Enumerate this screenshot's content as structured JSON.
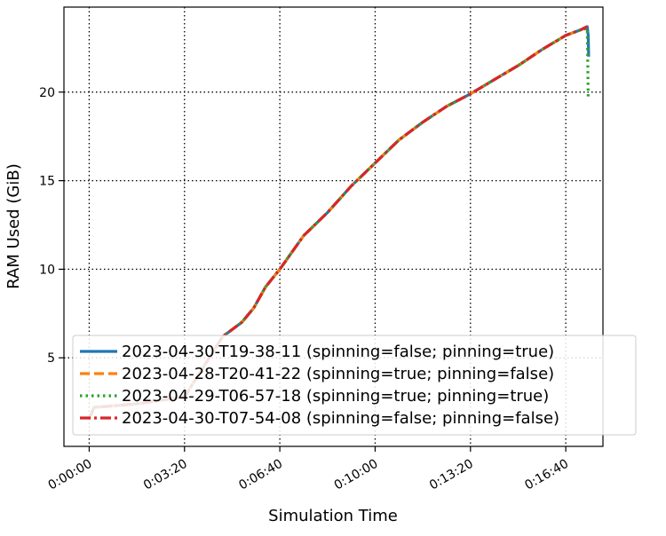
{
  "chart_data": {
    "type": "line",
    "xlabel": "Simulation Time",
    "ylabel": "RAM Used (GiB)",
    "x_unit": "h:mm:ss",
    "xlim": [
      "-0:00:53",
      "0:17:58"
    ],
    "ylim": [
      0.0,
      24.8
    ],
    "x_ticks": [
      "0:00:00",
      "0:03:20",
      "0:06:40",
      "0:10:00",
      "0:13:20",
      "0:16:40"
    ],
    "y_ticks": [
      5,
      10,
      15,
      20
    ],
    "grid": true,
    "grid_style": "dotted",
    "legend_position": "lower-right",
    "series": [
      {
        "name": "2023-04-30-T19-38-11 (spinning=false; pinning=true)",
        "color": "#1f77b4",
        "style": "solid",
        "points": [
          [
            "0:00:00",
            1.5
          ],
          [
            "0:00:10",
            2.2
          ],
          [
            "0:01:40",
            2.4
          ],
          [
            "0:03:20",
            2.8
          ],
          [
            "0:04:00",
            4.5
          ],
          [
            "0:04:40",
            6.2
          ],
          [
            "0:05:20",
            7.0
          ],
          [
            "0:05:45",
            7.8
          ],
          [
            "0:06:10",
            9.0
          ],
          [
            "0:06:40",
            10.0
          ],
          [
            "0:07:30",
            11.9
          ],
          [
            "0:08:20",
            13.2
          ],
          [
            "0:09:10",
            14.7
          ],
          [
            "0:10:00",
            16.0
          ],
          [
            "0:10:50",
            17.3
          ],
          [
            "0:11:40",
            18.3
          ],
          [
            "0:12:30",
            19.2
          ],
          [
            "0:13:20",
            19.9
          ],
          [
            "0:14:10",
            20.7
          ],
          [
            "0:15:00",
            21.5
          ],
          [
            "0:15:50",
            22.4
          ],
          [
            "0:16:40",
            23.2
          ],
          [
            "0:17:10",
            23.5
          ],
          [
            "0:17:25",
            23.7
          ],
          [
            "0:17:27",
            23.2
          ],
          [
            "0:17:28",
            22.0
          ]
        ]
      },
      {
        "name": "2023-04-28-T20-41-22 (spinning=true; pinning=false)",
        "color": "#ff7f0e",
        "style": "dashed",
        "points": [
          [
            "0:00:00",
            1.5
          ],
          [
            "0:00:10",
            2.2
          ],
          [
            "0:01:40",
            2.4
          ],
          [
            "0:03:20",
            2.8
          ],
          [
            "0:04:00",
            4.5
          ],
          [
            "0:04:40",
            6.2
          ],
          [
            "0:05:20",
            7.0
          ],
          [
            "0:05:45",
            7.8
          ],
          [
            "0:06:10",
            9.0
          ],
          [
            "0:06:40",
            10.0
          ],
          [
            "0:07:30",
            11.9
          ],
          [
            "0:08:20",
            13.2
          ],
          [
            "0:09:10",
            14.7
          ],
          [
            "0:10:00",
            16.0
          ],
          [
            "0:10:50",
            17.3
          ],
          [
            "0:11:40",
            18.3
          ],
          [
            "0:12:30",
            19.2
          ],
          [
            "0:13:20",
            19.9
          ],
          [
            "0:14:10",
            20.7
          ],
          [
            "0:15:00",
            21.5
          ],
          [
            "0:15:50",
            22.4
          ],
          [
            "0:16:40",
            23.2
          ],
          [
            "0:17:10",
            23.5
          ],
          [
            "0:17:25",
            23.7
          ]
        ]
      },
      {
        "name": "2023-04-29-T06-57-18 (spinning=true; pinning=true)",
        "color": "#2ca02c",
        "style": "dotted",
        "points": [
          [
            "0:00:00",
            1.5
          ],
          [
            "0:00:10",
            2.2
          ],
          [
            "0:01:40",
            2.4
          ],
          [
            "0:03:20",
            2.8
          ],
          [
            "0:04:00",
            4.5
          ],
          [
            "0:04:40",
            6.2
          ],
          [
            "0:05:20",
            7.0
          ],
          [
            "0:05:45",
            7.8
          ],
          [
            "0:06:10",
            9.0
          ],
          [
            "0:06:40",
            10.0
          ],
          [
            "0:07:30",
            11.9
          ],
          [
            "0:08:20",
            13.2
          ],
          [
            "0:09:10",
            14.7
          ],
          [
            "0:10:00",
            16.0
          ],
          [
            "0:10:50",
            17.3
          ],
          [
            "0:11:40",
            18.3
          ],
          [
            "0:12:30",
            19.2
          ],
          [
            "0:13:20",
            19.9
          ],
          [
            "0:14:10",
            20.7
          ],
          [
            "0:15:00",
            21.5
          ],
          [
            "0:15:50",
            22.4
          ],
          [
            "0:16:40",
            23.2
          ],
          [
            "0:17:10",
            23.5
          ],
          [
            "0:17:25",
            23.6
          ],
          [
            "0:17:26",
            22.0
          ],
          [
            "0:17:27",
            19.7
          ]
        ]
      },
      {
        "name": "2023-04-30-T07-54-08 (spinning=false; pinning=false)",
        "color": "#d62728",
        "style": "dashdot",
        "points": [
          [
            "0:00:00",
            1.5
          ],
          [
            "0:00:10",
            2.2
          ],
          [
            "0:01:40",
            2.4
          ],
          [
            "0:03:20",
            2.8
          ],
          [
            "0:04:00",
            4.5
          ],
          [
            "0:04:40",
            6.2
          ],
          [
            "0:05:20",
            7.0
          ],
          [
            "0:05:45",
            7.8
          ],
          [
            "0:06:10",
            9.0
          ],
          [
            "0:06:40",
            10.0
          ],
          [
            "0:07:30",
            11.9
          ],
          [
            "0:08:20",
            13.2
          ],
          [
            "0:09:10",
            14.7
          ],
          [
            "0:10:00",
            16.0
          ],
          [
            "0:10:50",
            17.3
          ],
          [
            "0:11:40",
            18.3
          ],
          [
            "0:12:30",
            19.2
          ],
          [
            "0:13:20",
            19.9
          ],
          [
            "0:14:10",
            20.7
          ],
          [
            "0:15:00",
            21.5
          ],
          [
            "0:15:50",
            22.4
          ],
          [
            "0:16:40",
            23.2
          ],
          [
            "0:17:10",
            23.5
          ],
          [
            "0:17:25",
            23.7
          ]
        ]
      }
    ]
  }
}
